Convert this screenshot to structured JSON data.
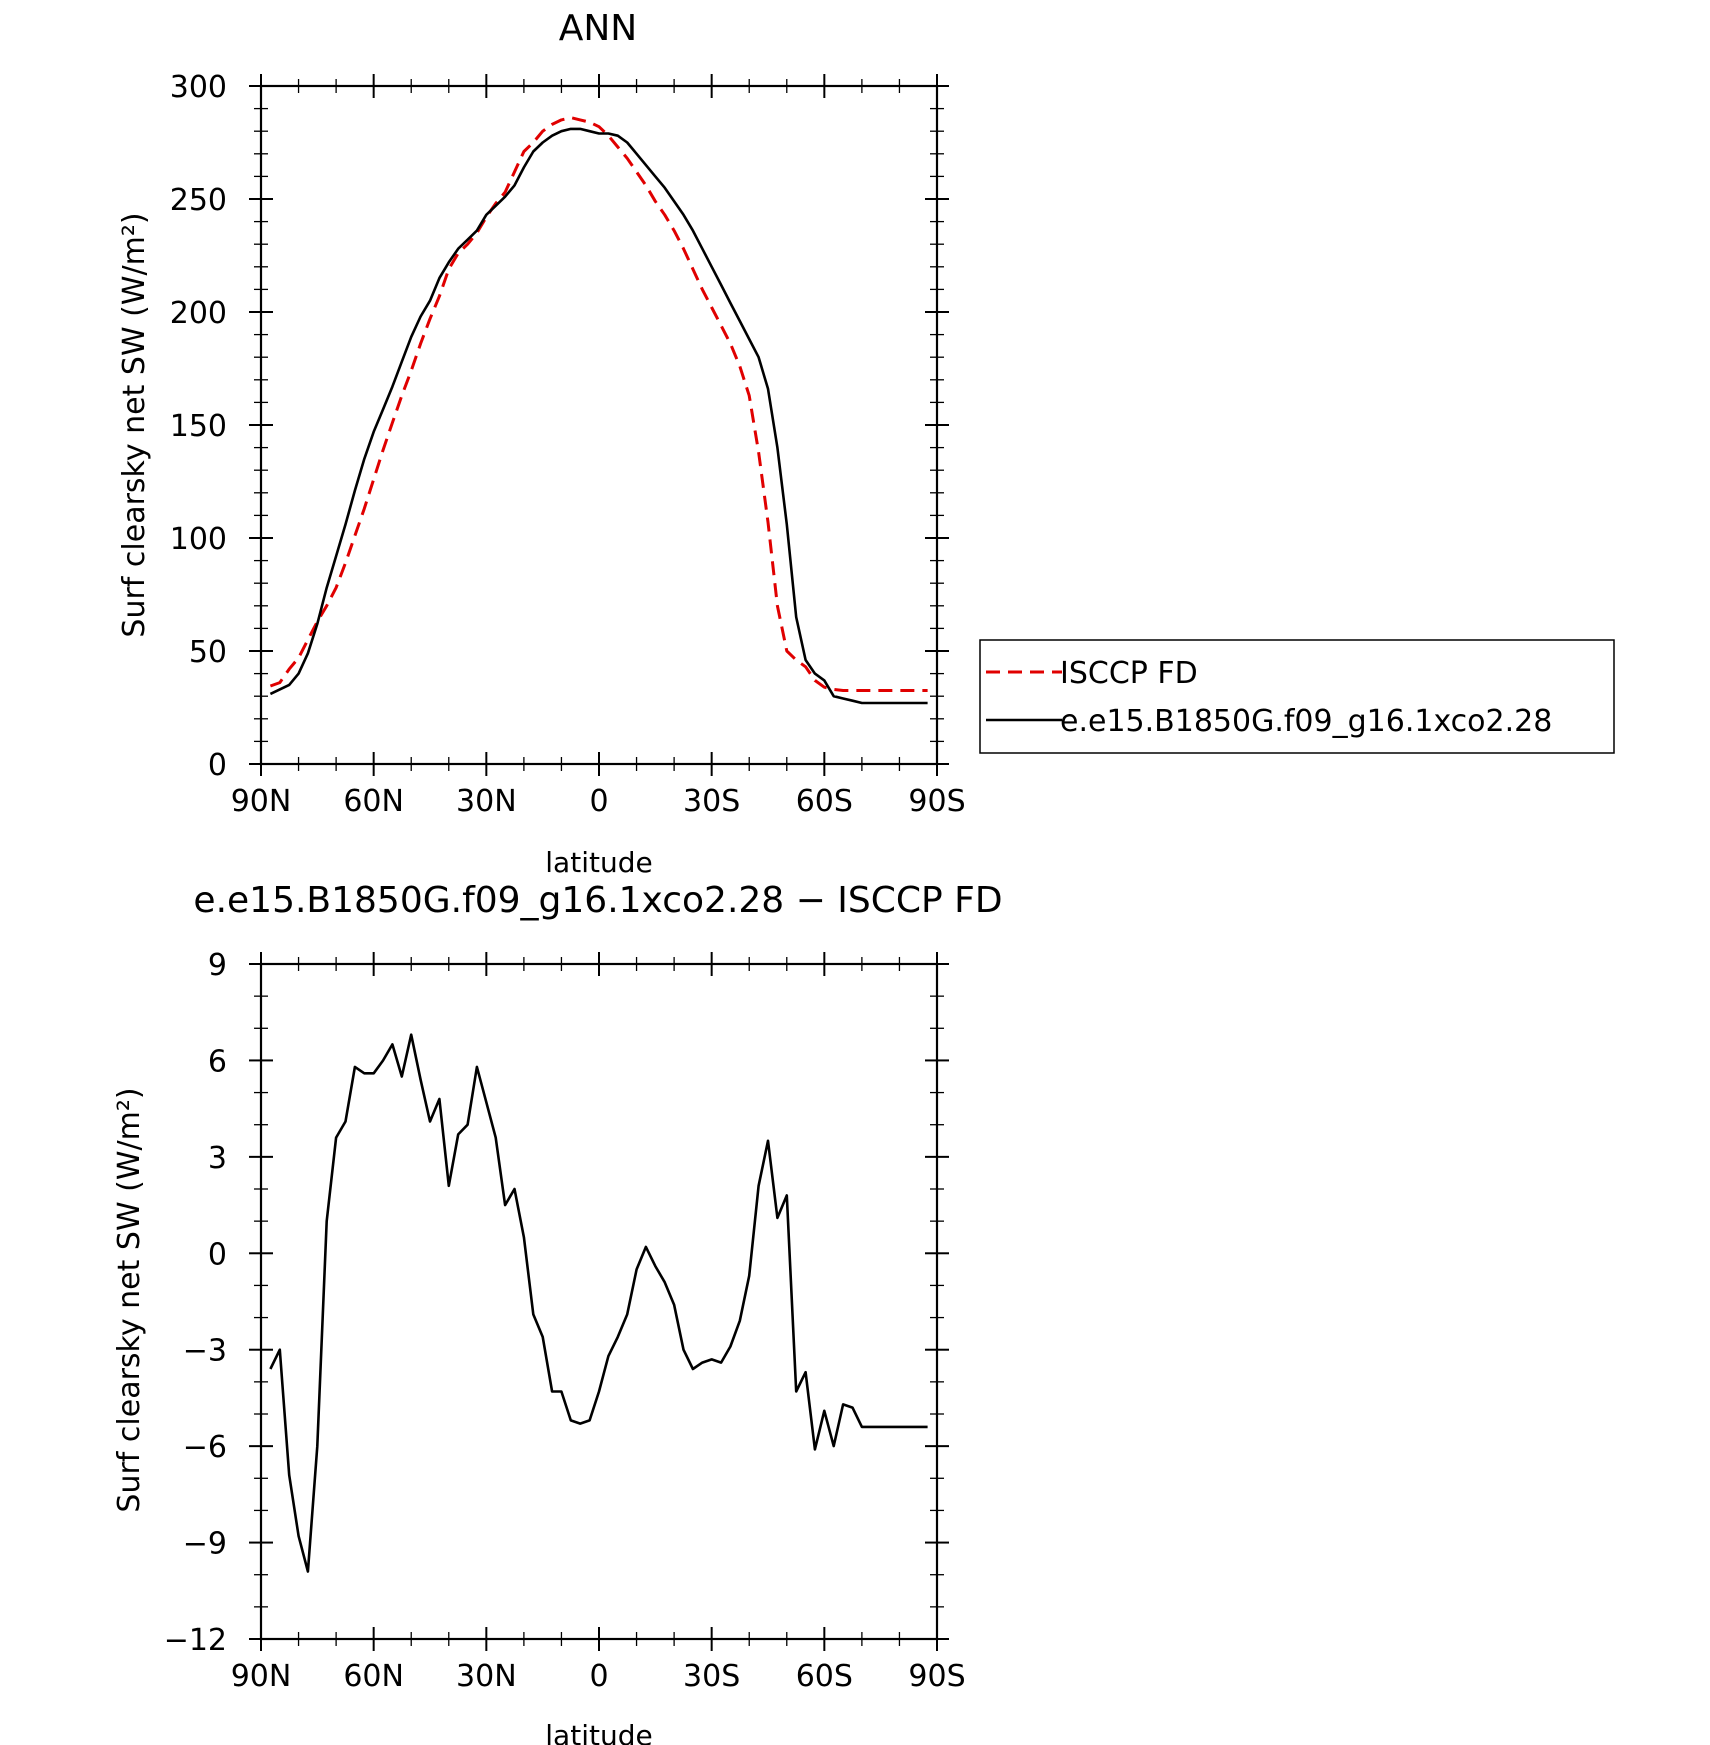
{
  "chart_data": [
    {
      "type": "line",
      "title": "ANN",
      "xlabel": "latitude",
      "ylabel": "Surf clearsky net SW (W/m²)",
      "xlim": [
        -90,
        90
      ],
      "ylim": [
        0,
        300
      ],
      "x_tick_labels": [
        "90N",
        "60N",
        "30N",
        "0",
        "30S",
        "60S",
        "90S"
      ],
      "y_tick_labels": [
        "0",
        "50",
        "100",
        "150",
        "200",
        "250",
        "300"
      ],
      "legend": {
        "placement": "right",
        "entries": [
          "ISCCP FD",
          "e.e15.B1850G.f09_g16.1xco2.28"
        ]
      },
      "x": [
        -87.5,
        -85,
        -82.5,
        -80,
        -77.5,
        -75,
        -72.5,
        -70,
        -67.5,
        -65,
        -62.5,
        -60,
        -57.5,
        -55,
        -52.5,
        -50,
        -47.5,
        -45,
        -42.5,
        -40,
        -37.5,
        -35,
        -32.5,
        -30,
        -27.5,
        -25,
        -22.5,
        -20,
        -17.5,
        -15,
        -12.5,
        -10,
        -7.5,
        -5,
        -2.5,
        0,
        2.5,
        5,
        7.5,
        10,
        12.5,
        15,
        17.5,
        20,
        22.5,
        25,
        27.5,
        30,
        32.5,
        35,
        37.5,
        40,
        42.5,
        45,
        47.5,
        50,
        52.5,
        55,
        57.5,
        60,
        62.5,
        65,
        67.5,
        70,
        72.5,
        75,
        77.5,
        80,
        82.5,
        85,
        87.5
      ],
      "series": [
        {
          "name": "ISCCP FD",
          "color": "#e00000",
          "dash": "dashed",
          "values": [
            34.5,
            36,
            42,
            47,
            55,
            63,
            70,
            78,
            89,
            101,
            113,
            126,
            139,
            151,
            163,
            174,
            186,
            197,
            207,
            219,
            226,
            230,
            235,
            242,
            248,
            253,
            262,
            271,
            275,
            280,
            283,
            285,
            286,
            285,
            284,
            282,
            278,
            273,
            268,
            262,
            256,
            249,
            243,
            236,
            228,
            219,
            210,
            202,
            194,
            186,
            176,
            163,
            138,
            107,
            70,
            50,
            46,
            43,
            37,
            34,
            33,
            32.5,
            32.5,
            32.5,
            32.5,
            32.5,
            32.5,
            32.5,
            32.5,
            32.5,
            32.5
          ]
        },
        {
          "name": "e.e15.B1850G.f09_g16.1xco2.28",
          "color": "#000000",
          "dash": "solid",
          "values": [
            31,
            33,
            35,
            40,
            49,
            62,
            78,
            92,
            106,
            121,
            135,
            147,
            157,
            167,
            178,
            189,
            198,
            205,
            215,
            222,
            228,
            232,
            236,
            243,
            247,
            251,
            256,
            264,
            271,
            275,
            278,
            280,
            281,
            281,
            280,
            279,
            279,
            278,
            275,
            270,
            265,
            260,
            255,
            249,
            243,
            236,
            228,
            220,
            212,
            204,
            196,
            188,
            180,
            166,
            140,
            106,
            65,
            46,
            40,
            37,
            30,
            29,
            28,
            27,
            27,
            27,
            27,
            27,
            27,
            27,
            27
          ]
        }
      ]
    },
    {
      "type": "line",
      "title": "e.e15.B1850G.f09_g16.1xco2.28 − ISCCP FD",
      "xlabel": "latitude",
      "ylabel": "Surf clearsky net SW (W/m²)",
      "xlim": [
        -90,
        90
      ],
      "ylim": [
        -12,
        9
      ],
      "x_tick_labels": [
        "90N",
        "60N",
        "30N",
        "0",
        "30S",
        "60S",
        "90S"
      ],
      "y_tick_labels": [
        "−12",
        "−9",
        "−6",
        "−3",
        "0",
        "3",
        "6",
        "9"
      ],
      "x": [
        -87.5,
        -85,
        -82.5,
        -80,
        -77.5,
        -75,
        -72.5,
        -70,
        -67.5,
        -65,
        -62.5,
        -60,
        -57.5,
        -55,
        -52.5,
        -50,
        -47.5,
        -45,
        -42.5,
        -40,
        -37.5,
        -35,
        -32.5,
        -30,
        -27.5,
        -25,
        -22.5,
        -20,
        -17.5,
        -15,
        -12.5,
        -10,
        -7.5,
        -5,
        -2.5,
        0,
        2.5,
        5,
        7.5,
        10,
        12.5,
        15,
        17.5,
        20,
        22.5,
        25,
        27.5,
        30,
        32.5,
        35,
        37.5,
        40,
        42.5,
        45,
        47.5,
        50,
        52.5,
        55,
        57.5,
        60,
        62.5,
        65,
        67.5,
        70,
        72.5,
        75,
        77.5,
        80,
        82.5,
        85,
        87.5
      ],
      "series": [
        {
          "name": "",
          "color": "#000000",
          "dash": "solid",
          "values": [
            -3.6,
            -3.0,
            -6.9,
            -8.8,
            -9.9,
            -6.0,
            1.0,
            3.6,
            4.1,
            5.8,
            5.6,
            5.6,
            6.0,
            6.5,
            5.5,
            6.8,
            5.4,
            4.1,
            4.8,
            2.1,
            3.7,
            4.0,
            5.8,
            4.7,
            3.6,
            1.5,
            2.0,
            0.5,
            -1.9,
            -2.6,
            -4.3,
            -4.3,
            -5.2,
            -5.3,
            -5.2,
            -4.3,
            -3.2,
            -2.6,
            -1.9,
            -0.5,
            0.2,
            -0.4,
            -0.9,
            -1.6,
            -3.0,
            -3.6,
            -3.4,
            -3.3,
            -3.4,
            -2.9,
            -2.1,
            -0.7,
            2.1,
            3.5,
            1.1,
            1.8,
            -4.3,
            -3.7,
            -6.1,
            -4.9,
            -6.0,
            -4.7,
            -4.8,
            -5.4,
            -5.4,
            -5.4,
            -5.4,
            -5.4,
            -5.4,
            -5.4,
            -5.4
          ]
        }
      ]
    }
  ]
}
